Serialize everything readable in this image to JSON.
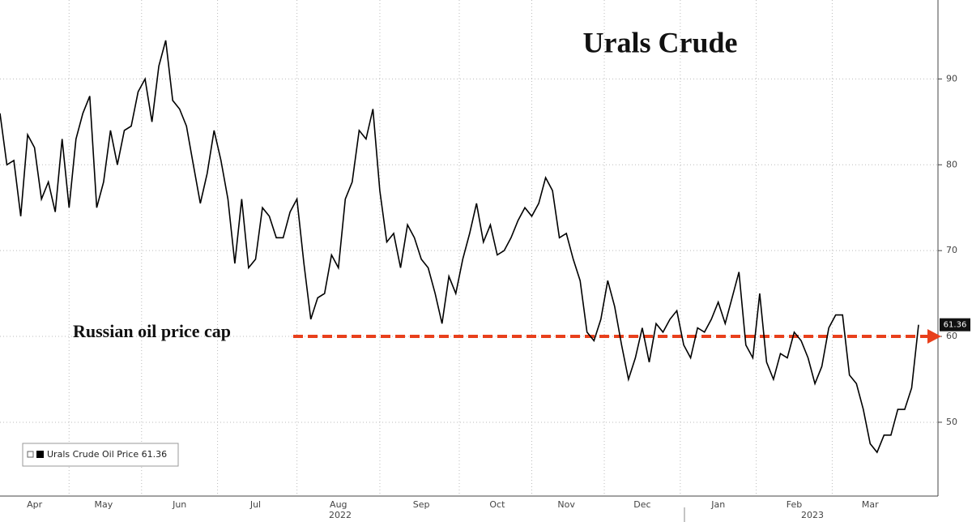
{
  "chart_data": {
    "type": "line",
    "title": "Urals Crude",
    "categories": [
      null,
      null,
      null,
      null,
      null,
      "Apr",
      null,
      null,
      null,
      null,
      null,
      null,
      null,
      null,
      null,
      "May",
      null,
      null,
      null,
      null,
      null,
      null,
      null,
      null,
      null,
      null,
      "Jun",
      null,
      null,
      null,
      null,
      null,
      null,
      null,
      null,
      null,
      null,
      "Jul",
      null,
      null,
      null,
      null,
      null,
      null,
      null,
      null,
      null,
      null,
      null,
      "Aug",
      null,
      null,
      null,
      null,
      null,
      null,
      null,
      null,
      null,
      null,
      null,
      "Sep",
      null,
      null,
      null,
      null,
      null,
      null,
      null,
      null,
      null,
      null,
      "Oct",
      null,
      null,
      null,
      null,
      null,
      null,
      null,
      null,
      null,
      "Nov",
      null,
      null,
      null,
      null,
      null,
      null,
      null,
      null,
      null,
      null,
      "Dec",
      null,
      null,
      null,
      null,
      null,
      null,
      null,
      null,
      null,
      null,
      "Jan",
      null,
      null,
      null,
      null,
      null,
      null,
      null,
      null,
      null,
      null,
      "Feb",
      null,
      null,
      null,
      null,
      null,
      null,
      null,
      null,
      null,
      null,
      "Mar",
      null,
      null,
      null,
      null,
      null,
      null,
      null
    ],
    "year_labels": [
      "2022",
      "2023"
    ],
    "series": [
      {
        "name": "Urals Crude Oil Price",
        "color": "#000000",
        "values": [
          86,
          80,
          80.5,
          74,
          83.5,
          82,
          76,
          78,
          74.5,
          83,
          75,
          83,
          86,
          88,
          75,
          78,
          84,
          80,
          84,
          84.5,
          88.5,
          90,
          85,
          91.5,
          94.5,
          87.5,
          86.5,
          84.5,
          80,
          75.5,
          79,
          84,
          80.5,
          76,
          68.5,
          76,
          68,
          69,
          75,
          74,
          71.5,
          71.5,
          74.5,
          76,
          68.5,
          62,
          64.5,
          65,
          69.5,
          68,
          76,
          78,
          84,
          83,
          86.5,
          77,
          71,
          72,
          68,
          73,
          71.5,
          69,
          68,
          65,
          61.5,
          67,
          65,
          69,
          72,
          75.5,
          71,
          73,
          69.5,
          70,
          71.5,
          73.5,
          75,
          74,
          75.5,
          78.5,
          77,
          71.5,
          72,
          69,
          66.5,
          60.5,
          59.5,
          62,
          66.5,
          63.5,
          59,
          55,
          57.5,
          61,
          57,
          61.5,
          60.5,
          62,
          63,
          59,
          57.5,
          61,
          60.5,
          62,
          64,
          61.5,
          64.5,
          67.5,
          59,
          57.5,
          65,
          57,
          55,
          58,
          57.5,
          60.5,
          59.5,
          57.5,
          54.5,
          56.5,
          61,
          62.5,
          62.5,
          55.5,
          54.5,
          51.5,
          47.5,
          46.5,
          48.5,
          48.5,
          51.5,
          51.5,
          54,
          61.36
        ]
      }
    ],
    "reference_line": {
      "value": 60,
      "label": "Russian oil price cap",
      "color": "#e8401c"
    },
    "ylim": [
      41.4,
      99.2
    ],
    "yticks": [
      50,
      60,
      70,
      80,
      90
    ],
    "grid": true
  }
}
